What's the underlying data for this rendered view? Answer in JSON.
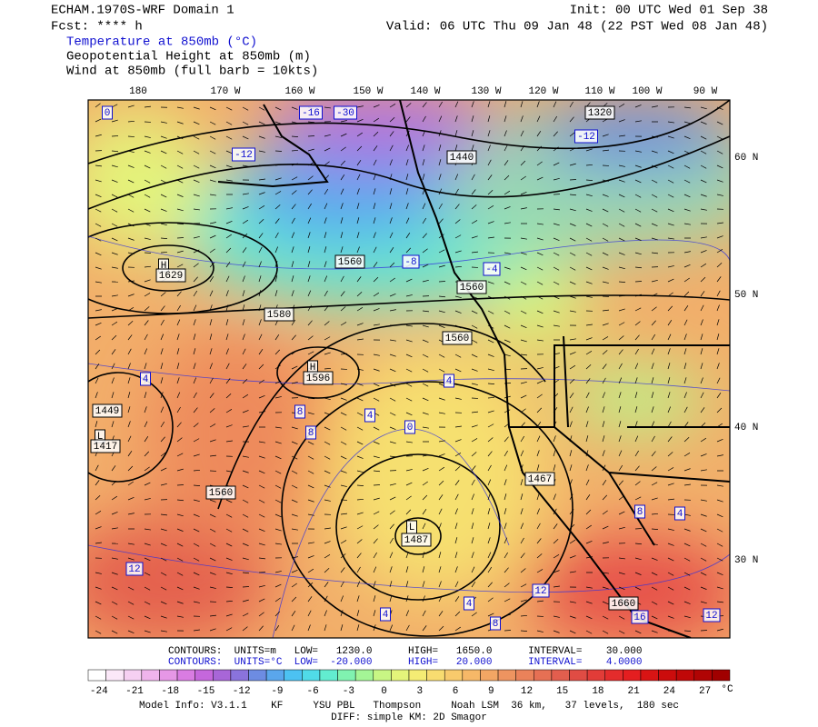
{
  "header": {
    "left": [
      "ECHAM.1970S-WRF Domain 1",
      "Fcst: **** h"
    ],
    "right": [
      "Init: 00 UTC Wed 01 Sep 38",
      "Valid: 06 UTC Thu 09 Jan 48 (22 PST Wed 08 Jan 48)"
    ],
    "fields": [
      "Temperature at 850mb (°C)",
      "Geopotential Height at 850mb (m)",
      "Wind at 850mb (full barb = 10kts)"
    ]
  },
  "map": {
    "lon_labels": [
      "180",
      "170 W",
      "160 W",
      "150 W",
      "140 W",
      "130 W",
      "120 W",
      "110 W",
      "100 W",
      "90 W"
    ],
    "lat_labels": [
      "60 N",
      "50 N",
      "40 N",
      "30 N"
    ],
    "labels": [
      "1320",
      "-16",
      "-30",
      "-12",
      "1440",
      "-12",
      "H",
      "1629",
      "1560",
      "-8",
      "1580",
      "1560",
      "1560",
      "H",
      "1596",
      "1449",
      "L",
      "1417",
      "1560",
      "1467",
      "L",
      "1487",
      "1660",
      "12",
      "12",
      "16",
      "4",
      "0",
      "4",
      "-4",
      "8",
      "8",
      "4",
      "4",
      "8",
      "4",
      "8",
      "4",
      "12",
      "0"
    ]
  },
  "contours": [
    "CONTOURS:  UNITS=m   LOW=   1230.0      HIGH=   1650.0      INTERVAL=    30.000",
    "CONTOURS:  UNITS=°C  LOW=  -20.000      HIGH=   20.000      INTERVAL=    4.0000"
  ],
  "colorbar": {
    "labels": [
      "-24",
      "-21",
      "-18",
      "-15",
      "-12",
      "-9",
      "-6",
      "-3",
      "0",
      "3",
      "6",
      "9",
      "12",
      "15",
      "18",
      "21",
      "24",
      "27"
    ],
    "unit": "°C",
    "colors": [
      "#ffffff",
      "#fbe8f8",
      "#f6d0f2",
      "#efb4ec",
      "#e697e6",
      "#d97ce2",
      "#c567dc",
      "#a866d8",
      "#8a73dc",
      "#6d8ce2",
      "#5aa6ec",
      "#4cc2f2",
      "#50dbe8",
      "#62ecd0",
      "#80f2b0",
      "#a4f596",
      "#c8f684",
      "#e4f47a",
      "#f4ec74",
      "#f8dc70",
      "#f8ca6c",
      "#f6b868",
      "#f2a664",
      "#ee9460",
      "#ea825a",
      "#e67054",
      "#e25e4e",
      "#e04c44",
      "#e23c38",
      "#e42c2c",
      "#e41e20",
      "#d81414",
      "#cc0c0c",
      "#c00808",
      "#b00404",
      "#a00000"
    ]
  },
  "footer": [
    "Model Info: V3.1.1    KF     YSU PBL   Thompson     Noah LSM  36 km,   37 levels,  180 sec",
    "DIFF: simple KM: 2D Smagor"
  ]
}
